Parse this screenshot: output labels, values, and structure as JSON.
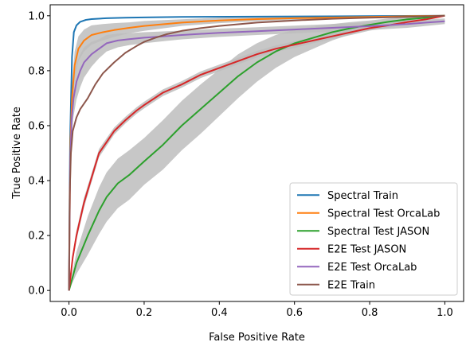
{
  "chart_data": {
    "type": "line",
    "xlabel": "False Positive Rate",
    "ylabel": "True Positive Rate",
    "xlim": [
      -0.05,
      1.05
    ],
    "ylim": [
      -0.04,
      1.04
    ],
    "xticks": [
      0.0,
      0.2,
      0.4,
      0.6,
      0.8,
      1.0
    ],
    "yticks": [
      0.0,
      0.2,
      0.4,
      0.6,
      0.8,
      1.0
    ],
    "xtick_labels": [
      "0.0",
      "0.2",
      "0.4",
      "0.6",
      "0.8",
      "1.0"
    ],
    "ytick_labels": [
      "0.0",
      "0.2",
      "0.4",
      "0.6",
      "0.8",
      "1.0"
    ],
    "grid": false,
    "legend_position": "lower-right",
    "band_color": "#bdbdbd",
    "series": [
      {
        "name": "Spectral Train",
        "color": "#1f77b4",
        "x": [
          0,
          0.003,
          0.008,
          0.013,
          0.02,
          0.03,
          0.045,
          0.06,
          0.1,
          0.15,
          0.2,
          0.3,
          0.5,
          0.7,
          1.0
        ],
        "y": [
          0,
          0.55,
          0.85,
          0.94,
          0.965,
          0.978,
          0.985,
          0.988,
          0.991,
          0.993,
          0.994,
          0.996,
          0.997,
          0.998,
          1.0
        ],
        "band": null
      },
      {
        "name": "Spectral Test OrcaLab",
        "color": "#ff7f0e",
        "x": [
          0,
          0.004,
          0.008,
          0.015,
          0.025,
          0.04,
          0.06,
          0.09,
          0.12,
          0.16,
          0.2,
          0.3,
          0.4,
          0.5,
          0.6,
          0.8,
          1.0
        ],
        "y": [
          0,
          0.55,
          0.7,
          0.82,
          0.88,
          0.91,
          0.93,
          0.94,
          0.948,
          0.956,
          0.963,
          0.975,
          0.983,
          0.988,
          0.991,
          0.996,
          1.0
        ],
        "band": [
          0.03,
          0.045,
          0.05,
          0.05,
          0.045,
          0.04,
          0.035,
          0.03,
          0.025,
          0.02,
          0.018,
          0.012,
          0.01,
          0.008,
          0.006,
          0.004,
          0
        ]
      },
      {
        "name": "Spectral Test JASON",
        "color": "#2ca02c",
        "x": [
          0,
          0.02,
          0.05,
          0.08,
          0.1,
          0.13,
          0.16,
          0.2,
          0.25,
          0.3,
          0.35,
          0.4,
          0.45,
          0.5,
          0.55,
          0.6,
          0.65,
          0.7,
          0.75,
          0.8,
          0.85,
          0.9,
          0.95,
          1.0
        ],
        "y": [
          0,
          0.1,
          0.2,
          0.29,
          0.34,
          0.39,
          0.42,
          0.47,
          0.53,
          0.6,
          0.66,
          0.72,
          0.78,
          0.83,
          0.87,
          0.9,
          0.92,
          0.94,
          0.955,
          0.967,
          0.978,
          0.987,
          0.993,
          1.0
        ],
        "band": [
          0,
          0.04,
          0.07,
          0.085,
          0.09,
          0.09,
          0.09,
          0.085,
          0.09,
          0.09,
          0.09,
          0.085,
          0.08,
          0.07,
          0.06,
          0.05,
          0.04,
          0.03,
          0.022,
          0.016,
          0.012,
          0.008,
          0.004,
          0
        ]
      },
      {
        "name": "E2E Test JASON",
        "color": "#d62728",
        "x": [
          0,
          0.01,
          0.02,
          0.03,
          0.04,
          0.06,
          0.08,
          0.1,
          0.12,
          0.15,
          0.18,
          0.2,
          0.25,
          0.3,
          0.35,
          0.4,
          0.45,
          0.5,
          0.55,
          0.6,
          0.65,
          0.7,
          0.75,
          0.8,
          0.85,
          0.9,
          0.95,
          1.0
        ],
        "y": [
          0,
          0.12,
          0.2,
          0.26,
          0.32,
          0.41,
          0.5,
          0.54,
          0.58,
          0.62,
          0.655,
          0.675,
          0.72,
          0.75,
          0.785,
          0.81,
          0.835,
          0.86,
          0.88,
          0.895,
          0.91,
          0.925,
          0.94,
          0.955,
          0.965,
          0.977,
          0.987,
          1.0
        ],
        "band": [
          0,
          0.015,
          0.018,
          0.018,
          0.018,
          0.016,
          0.015,
          0.014,
          0.013,
          0.012,
          0.012,
          0.012,
          0.012,
          0.012,
          0.012,
          0.012,
          0.012,
          0.012,
          0.012,
          0.012,
          0.01,
          0.01,
          0.01,
          0.009,
          0.008,
          0.006,
          0.004,
          0
        ]
      },
      {
        "name": "E2E Test OrcaLab",
        "color": "#9467bd",
        "x": [
          0,
          0.003,
          0.007,
          0.012,
          0.02,
          0.03,
          0.04,
          0.06,
          0.08,
          0.1,
          0.13,
          0.16,
          0.2,
          0.25,
          0.3,
          0.4,
          0.5,
          0.6,
          0.7,
          0.8,
          0.9,
          0.95,
          1.0
        ],
        "y": [
          0,
          0.45,
          0.62,
          0.7,
          0.76,
          0.8,
          0.83,
          0.86,
          0.88,
          0.9,
          0.91,
          0.915,
          0.92,
          0.925,
          0.93,
          0.938,
          0.944,
          0.95,
          0.956,
          0.962,
          0.97,
          0.975,
          0.98
        ],
        "band": [
          0,
          0.05,
          0.06,
          0.065,
          0.065,
          0.06,
          0.055,
          0.045,
          0.035,
          0.03,
          0.025,
          0.022,
          0.02,
          0.018,
          0.016,
          0.015,
          0.014,
          0.014,
          0.014,
          0.014,
          0.014,
          0.012,
          0.01
        ]
      },
      {
        "name": "E2E Train",
        "color": "#8c564b",
        "x": [
          0,
          0.002,
          0.005,
          0.01,
          0.02,
          0.03,
          0.05,
          0.07,
          0.09,
          0.12,
          0.15,
          0.18,
          0.2,
          0.23,
          0.26,
          0.3,
          0.35,
          0.4,
          0.5,
          0.6,
          0.7,
          0.8,
          0.9,
          1.0
        ],
        "y": [
          0,
          0.35,
          0.5,
          0.58,
          0.63,
          0.66,
          0.7,
          0.75,
          0.79,
          0.83,
          0.865,
          0.89,
          0.905,
          0.92,
          0.933,
          0.945,
          0.955,
          0.963,
          0.975,
          0.983,
          0.989,
          0.993,
          0.996,
          1.0
        ],
        "band": null
      }
    ]
  }
}
